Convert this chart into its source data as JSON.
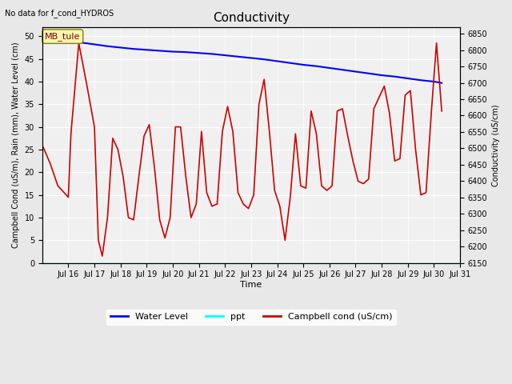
{
  "title": "Conductivity",
  "top_left_text": "No data for f_cond_HYDROS",
  "xlabel": "Time",
  "ylabel_left": "Campbell Cond (uS/m), Rain (mm), Water Level (cm)",
  "ylabel_right": "Conductivity (uS/cm)",
  "annotation_box": "MB_tule",
  "x_tick_labels": [
    "Jul 16",
    "Jul 17",
    "Jul 18",
    "Jul 19",
    "Jul 20",
    "Jul 21",
    "Jul 22",
    "Jul 23",
    "Jul 24",
    "Jul 25",
    "Jul 26",
    "Jul 27",
    "Jul 28",
    "Jul 29",
    "Jul 30",
    "Jul 31"
  ],
  "ylim_left": [
    0,
    52
  ],
  "ylim_right": [
    6150,
    6870
  ],
  "yticks_left": [
    0,
    5,
    10,
    15,
    20,
    25,
    30,
    35,
    40,
    45,
    50
  ],
  "yticks_right": [
    6150,
    6200,
    6250,
    6300,
    6350,
    6400,
    6450,
    6500,
    6550,
    6600,
    6650,
    6700,
    6750,
    6800,
    6850
  ],
  "background_color": "#e8e8e8",
  "plot_bg_color": "#f0f0f0",
  "water_level_color": "#0000ff",
  "ppt_color": "#00ffff",
  "campbell_color": "#cc0000",
  "legend_entries": [
    "Water Level",
    "ppt",
    "Campbell cond (uS/cm)"
  ],
  "water_level_x": [
    15.0,
    15.5,
    16.0,
    16.5,
    17.0,
    17.5,
    18.0,
    18.5,
    19.0,
    19.5,
    20.0,
    20.5,
    21.0,
    21.5,
    22.0,
    22.5,
    23.0,
    23.5,
    24.0,
    24.5,
    25.0,
    25.5,
    26.0,
    26.5,
    27.0,
    27.5,
    28.0,
    28.5,
    29.0,
    29.5,
    30.0,
    30.3
  ],
  "water_level_y": [
    49.8,
    49.5,
    49.0,
    48.6,
    48.2,
    47.8,
    47.5,
    47.2,
    47.0,
    46.8,
    46.6,
    46.5,
    46.3,
    46.1,
    45.8,
    45.5,
    45.2,
    44.9,
    44.5,
    44.1,
    43.7,
    43.4,
    43.0,
    42.6,
    42.2,
    41.8,
    41.4,
    41.1,
    40.7,
    40.3,
    40.0,
    39.7
  ],
  "campbell_x": [
    15.0,
    15.3,
    15.6,
    16.0,
    16.1,
    16.4,
    16.7,
    17.0,
    17.15,
    17.3,
    17.5,
    17.7,
    17.9,
    18.1,
    18.3,
    18.5,
    18.7,
    18.9,
    19.1,
    19.3,
    19.5,
    19.7,
    19.9,
    20.1,
    20.3,
    20.5,
    20.7,
    20.9,
    21.1,
    21.3,
    21.5,
    21.7,
    21.9,
    22.1,
    22.3,
    22.5,
    22.7,
    22.9,
    23.1,
    23.3,
    23.5,
    23.7,
    23.9,
    24.1,
    24.3,
    24.5,
    24.7,
    24.9,
    25.1,
    25.3,
    25.5,
    25.7,
    25.9,
    26.1,
    26.3,
    26.5,
    26.7,
    26.9,
    27.1,
    27.3,
    27.5,
    27.7,
    27.9,
    28.1,
    28.3,
    28.5,
    28.7,
    28.9,
    29.1,
    29.3,
    29.5,
    29.7,
    29.9,
    30.1,
    30.3
  ],
  "campbell_y": [
    26.0,
    22.0,
    17.0,
    14.5,
    28.5,
    48.5,
    39.5,
    30.0,
    5.0,
    1.5,
    10.0,
    27.5,
    25.0,
    19.0,
    10.0,
    9.5,
    19.0,
    28.0,
    30.5,
    21.0,
    9.5,
    5.5,
    10.0,
    30.0,
    30.0,
    19.0,
    10.0,
    13.0,
    29.0,
    15.5,
    12.5,
    13.0,
    29.0,
    34.5,
    29.0,
    15.5,
    13.0,
    12.0,
    15.0,
    35.0,
    40.5,
    29.0,
    16.0,
    12.5,
    5.0,
    14.5,
    28.5,
    17.0,
    16.5,
    33.5,
    28.5,
    17.0,
    16.0,
    17.0,
    33.5,
    34.0,
    28.0,
    22.5,
    18.0,
    17.5,
    18.5,
    34.0,
    36.5,
    39.0,
    33.0,
    22.5,
    23.0,
    37.0,
    38.0,
    25.0,
    15.0,
    15.5,
    33.0,
    48.5,
    33.5
  ]
}
